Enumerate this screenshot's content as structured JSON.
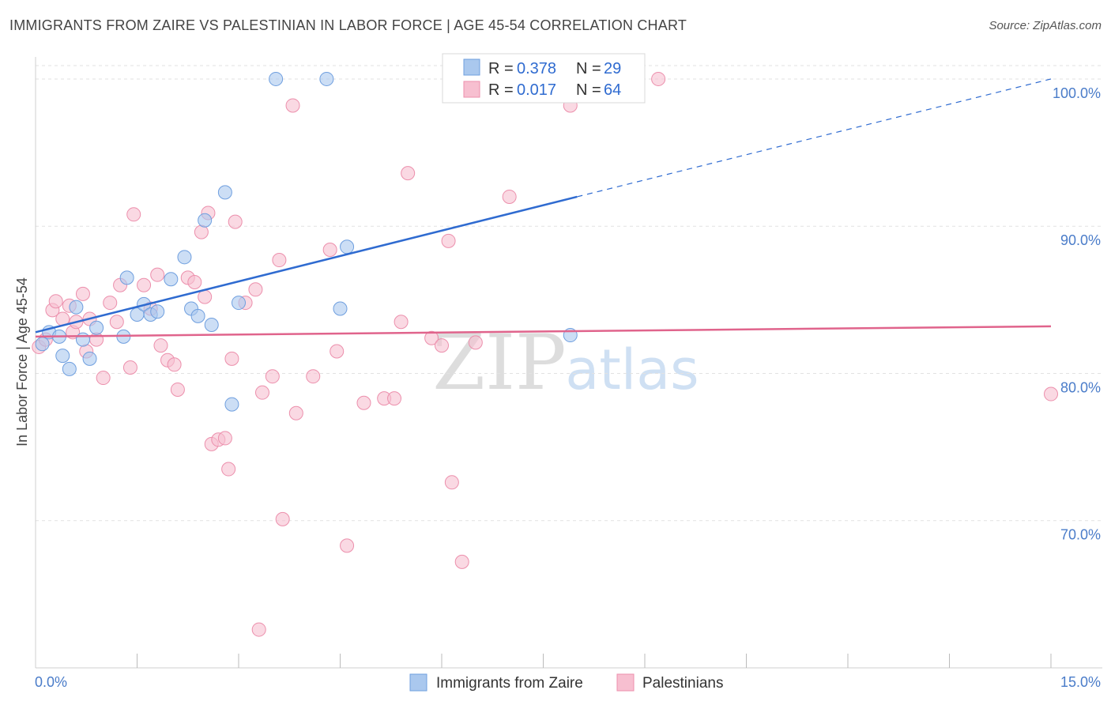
{
  "title": "IMMIGRANTS FROM ZAIRE VS PALESTINIAN IN LABOR FORCE | AGE 45-54 CORRELATION CHART",
  "source": "Source: ZipAtlas.com",
  "watermark": {
    "zip": "ZIP",
    "atlas": "atlas"
  },
  "colors": {
    "blue_fill": "#aac8ee",
    "blue_stroke": "#6f9fdf",
    "blue_line": "#2f6bd0",
    "pink_fill": "#f7bfd0",
    "pink_stroke": "#ec8fac",
    "pink_line": "#e0648c",
    "grid": "#e2e2e2",
    "axis_text": "#4a7cc9"
  },
  "legend": {
    "rows": [
      {
        "r_label": "R =",
        "r_value": "0.378",
        "n_label": "N =",
        "n_value": "29"
      },
      {
        "r_label": "R =",
        "r_value": "0.017",
        "n_label": "N =",
        "n_value": "64"
      }
    ]
  },
  "chart_data": {
    "type": "scatter",
    "title": "IMMIGRANTS FROM ZAIRE VS PALESTINIAN IN LABOR FORCE | AGE 45-54 CORRELATION CHART",
    "xlabel": "",
    "ylabel": "In Labor Force | Age 45-54",
    "xlim": [
      0,
      15
    ],
    "ylim": [
      60,
      101.5
    ],
    "x_tick_labels": [
      "0.0%",
      "15.0%"
    ],
    "y_ticks": [
      70,
      80,
      90,
      100
    ],
    "y_tick_labels": [
      "70.0%",
      "80.0%",
      "90.0%",
      "100.0%"
    ],
    "grid": true,
    "series": [
      {
        "name": "Immigrants from Zaire",
        "color": "#aac8ee",
        "trend": {
          "x0": 0.0,
          "y0": 82.8,
          "x1": 8.0,
          "y1": 92.0,
          "dashed_to_x": 15.0,
          "dashed_to_y": 100.0
        },
        "points": [
          [
            0.1,
            82.0
          ],
          [
            0.2,
            82.8
          ],
          [
            0.35,
            82.5
          ],
          [
            0.4,
            81.2
          ],
          [
            0.5,
            80.3
          ],
          [
            0.6,
            84.5
          ],
          [
            0.7,
            82.3
          ],
          [
            0.8,
            81.0
          ],
          [
            0.9,
            83.1
          ],
          [
            1.3,
            82.5
          ],
          [
            1.35,
            86.5
          ],
          [
            1.5,
            84.0
          ],
          [
            1.6,
            84.7
          ],
          [
            1.7,
            84.0
          ],
          [
            1.8,
            84.2
          ],
          [
            2.0,
            86.4
          ],
          [
            2.2,
            87.9
          ],
          [
            2.3,
            84.4
          ],
          [
            2.4,
            83.9
          ],
          [
            2.5,
            90.4
          ],
          [
            2.6,
            83.3
          ],
          [
            2.8,
            92.3
          ],
          [
            2.9,
            77.9
          ],
          [
            3.0,
            84.8
          ],
          [
            3.55,
            100.0
          ],
          [
            4.3,
            100.0
          ],
          [
            4.5,
            84.4
          ],
          [
            4.6,
            88.6
          ],
          [
            7.9,
            82.6
          ]
        ]
      },
      {
        "name": "Palestinians",
        "color": "#f7bfd0",
        "trend": {
          "x0": 0.0,
          "y0": 82.5,
          "x1": 15.0,
          "y1": 83.2
        },
        "points": [
          [
            0.05,
            81.8
          ],
          [
            0.15,
            82.3
          ],
          [
            0.25,
            84.3
          ],
          [
            0.3,
            84.9
          ],
          [
            0.4,
            83.7
          ],
          [
            0.5,
            84.6
          ],
          [
            0.55,
            82.8
          ],
          [
            0.6,
            83.5
          ],
          [
            0.7,
            85.4
          ],
          [
            0.75,
            81.5
          ],
          [
            0.8,
            83.7
          ],
          [
            0.9,
            82.3
          ],
          [
            1.0,
            79.7
          ],
          [
            1.1,
            84.8
          ],
          [
            1.2,
            83.5
          ],
          [
            1.25,
            86.0
          ],
          [
            1.4,
            80.4
          ],
          [
            1.45,
            90.8
          ],
          [
            1.6,
            86.0
          ],
          [
            1.7,
            84.4
          ],
          [
            1.8,
            86.7
          ],
          [
            1.85,
            81.9
          ],
          [
            1.95,
            80.9
          ],
          [
            2.05,
            80.6
          ],
          [
            2.1,
            78.9
          ],
          [
            2.25,
            86.5
          ],
          [
            2.35,
            86.2
          ],
          [
            2.45,
            89.6
          ],
          [
            2.5,
            85.2
          ],
          [
            2.55,
            90.9
          ],
          [
            2.6,
            75.2
          ],
          [
            2.7,
            75.5
          ],
          [
            2.8,
            75.6
          ],
          [
            2.85,
            73.5
          ],
          [
            2.9,
            81.0
          ],
          [
            2.95,
            90.3
          ],
          [
            3.1,
            84.8
          ],
          [
            3.25,
            85.7
          ],
          [
            3.3,
            62.6
          ],
          [
            3.35,
            78.7
          ],
          [
            3.5,
            79.8
          ],
          [
            3.6,
            87.7
          ],
          [
            3.65,
            70.1
          ],
          [
            3.8,
            98.2
          ],
          [
            3.85,
            77.3
          ],
          [
            4.1,
            79.8
          ],
          [
            4.35,
            88.4
          ],
          [
            4.45,
            81.5
          ],
          [
            4.6,
            68.3
          ],
          [
            4.85,
            78.0
          ],
          [
            5.15,
            78.3
          ],
          [
            5.3,
            78.3
          ],
          [
            5.4,
            83.5
          ],
          [
            5.5,
            93.6
          ],
          [
            5.85,
            82.4
          ],
          [
            6.0,
            81.9
          ],
          [
            6.1,
            89.0
          ],
          [
            6.15,
            72.6
          ],
          [
            6.3,
            67.2
          ],
          [
            6.5,
            82.1
          ],
          [
            7.0,
            92.0
          ],
          [
            7.9,
            98.2
          ],
          [
            9.2,
            100.0
          ],
          [
            15.0,
            78.6
          ]
        ]
      }
    ]
  }
}
